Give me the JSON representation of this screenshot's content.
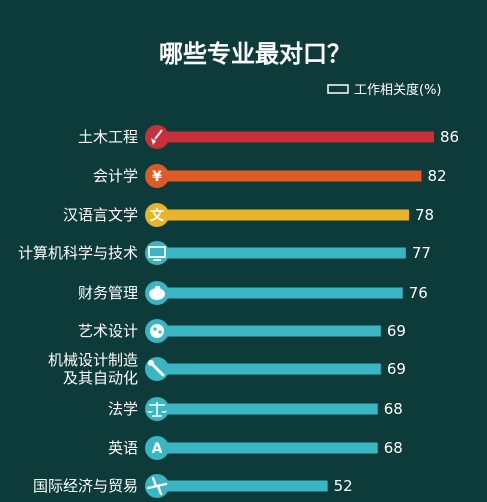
{
  "chart_data": {
    "type": "bar",
    "orientation": "horizontal",
    "title": "哪些专业最对口？",
    "legend": "工作相关度(%)",
    "legend_position": "top-right",
    "categories": [
      [
        "土木工程"
      ],
      [
        "会计学"
      ],
      [
        "汉语言文学"
      ],
      [
        "计算机科学与技术"
      ],
      [
        "财务管理"
      ],
      [
        "艺术设计"
      ],
      [
        "机械设计制造",
        "及其自动化"
      ],
      [
        "法学"
      ],
      [
        "英语"
      ],
      [
        "国际经济与贸易"
      ]
    ],
    "values": [
      86,
      82,
      78,
      77,
      76,
      69,
      69,
      68,
      68,
      52
    ],
    "bar_colors": [
      "#c6303a",
      "#e05a24",
      "#e8b52a",
      "#3ab5c2",
      "#3ab5c2",
      "#3ab5c2",
      "#3ab5c2",
      "#3ab5c2",
      "#3ab5c2",
      "#3ab5c2"
    ],
    "icons": [
      "shovel-icon",
      "yen-icon",
      "wen-icon",
      "monitor-icon",
      "piggy-bank-icon",
      "palette-icon",
      "wrench-icon",
      "scales-icon",
      "letter-a-icon",
      "airplane-icon"
    ],
    "icon_glyphs": [
      "",
      "¥",
      "文",
      "",
      "",
      "",
      "",
      "",
      "A",
      ""
    ],
    "xlim": [
      0,
      100
    ],
    "grid": false
  },
  "colors": {
    "background": "#0d3b3a",
    "text": "#ffffff"
  }
}
